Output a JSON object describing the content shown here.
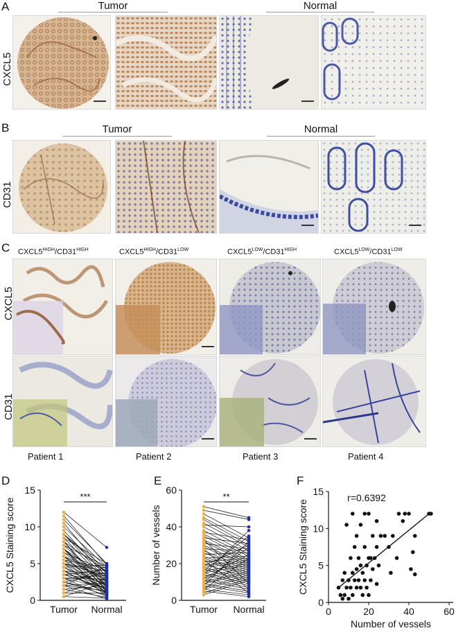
{
  "panels": {
    "A": {
      "letter": "A",
      "tumor_label": "Tumor",
      "normal_label": "Normal",
      "row_label": "CXCL5"
    },
    "B": {
      "letter": "B",
      "tumor_label": "Tumor",
      "normal_label": "Normal",
      "row_label": "CD31"
    },
    "C": {
      "letter": "C",
      "columns": [
        {
          "a": "CXCL5",
          "a_sup": "HIGH",
          "b": "/CD31",
          "b_sup": "HIGH"
        },
        {
          "a": "CXCL5",
          "a_sup": "HIGH",
          "b": "/CD31",
          "b_sup": "LOW"
        },
        {
          "a": "CXCL5",
          "a_sup": "LOW",
          "b": "/CD31",
          "b_sup": "HIGH"
        },
        {
          "a": "CXCL5",
          "a_sup": "LOW",
          "b": "/CD31",
          "b_sup": "LOW"
        }
      ],
      "row_labels": [
        "CXCL5",
        "CD31"
      ],
      "patients": [
        "Patient   1",
        "Patient   2",
        "Patient   3",
        "Patient   4"
      ]
    },
    "D": {
      "letter": "D"
    },
    "E": {
      "letter": "E"
    },
    "F": {
      "letter": "F"
    }
  },
  "colors": {
    "tumor": "#e8b050",
    "normal": "#1f2fa8",
    "line": "#111111"
  },
  "chart_data": [
    {
      "type": "line",
      "panel": "D",
      "ylabel": "CXCL5 Staining score",
      "categories": [
        "Tumor",
        "Normal"
      ],
      "ylim": [
        0,
        15
      ],
      "yticks": [
        0,
        5,
        10,
        15
      ],
      "significance": "***",
      "pairs": [
        [
          12,
          7.2
        ],
        [
          11.5,
          4.8
        ],
        [
          11,
          5
        ],
        [
          10.5,
          3.6
        ],
        [
          10,
          4.5
        ],
        [
          9.5,
          3.2
        ],
        [
          9,
          2.8
        ],
        [
          9,
          4.2
        ],
        [
          8.5,
          2.5
        ],
        [
          8.5,
          5
        ],
        [
          8,
          1.8
        ],
        [
          8,
          3.9
        ],
        [
          7.5,
          2.4
        ],
        [
          7.5,
          4.6
        ],
        [
          7,
          1.5
        ],
        [
          7,
          3.1
        ],
        [
          7,
          0.8
        ],
        [
          6.5,
          2.2
        ],
        [
          6.5,
          4
        ],
        [
          6,
          1.2
        ],
        [
          6,
          3.5
        ],
        [
          6,
          2.6
        ],
        [
          5.5,
          1
        ],
        [
          5.5,
          4.4
        ],
        [
          5.5,
          2.9
        ],
        [
          5,
          0.6
        ],
        [
          5,
          3.3
        ],
        [
          5,
          1.9
        ],
        [
          4.5,
          2.1
        ],
        [
          4.5,
          4.8
        ],
        [
          4.5,
          1.4
        ],
        [
          4,
          0.9
        ],
        [
          4,
          3.6
        ],
        [
          4,
          2.3
        ],
        [
          3.5,
          1.6
        ],
        [
          3.5,
          4.2
        ],
        [
          3.5,
          2.7
        ],
        [
          3,
          0.5
        ],
        [
          3,
          2.9
        ],
        [
          3,
          1.7
        ],
        [
          2.5,
          1.1
        ],
        [
          2.5,
          3.8
        ],
        [
          2.5,
          0.7
        ],
        [
          2,
          2.4
        ],
        [
          2,
          1.3
        ],
        [
          2,
          4.6
        ],
        [
          1.5,
          0.4
        ],
        [
          1.5,
          2
        ],
        [
          1,
          1
        ],
        [
          1,
          3
        ],
        [
          0.5,
          0.3
        ],
        [
          0.5,
          2.5
        ],
        [
          9,
          3.7
        ],
        [
          7,
          2
        ],
        [
          6,
          0.9
        ],
        [
          5,
          4
        ],
        [
          4,
          1.1
        ],
        [
          3,
          3.4
        ],
        [
          2,
          0.2
        ],
        [
          8,
          1.2
        ]
      ]
    },
    {
      "type": "line",
      "panel": "E",
      "ylabel": "Number of vessels",
      "categories": [
        "Tumor",
        "Normal"
      ],
      "ylim": [
        0,
        60
      ],
      "yticks": [
        0,
        20,
        40,
        60
      ],
      "significance": "**",
      "pairs": [
        [
          51,
          45
        ],
        [
          49,
          44
        ],
        [
          47,
          34
        ],
        [
          45,
          32
        ],
        [
          44,
          30
        ],
        [
          42,
          29
        ],
        [
          41,
          40
        ],
        [
          40,
          27
        ],
        [
          38,
          25
        ],
        [
          37,
          33
        ],
        [
          36,
          24
        ],
        [
          35,
          22
        ],
        [
          34,
          31
        ],
        [
          33,
          21
        ],
        [
          32,
          20
        ],
        [
          31,
          28
        ],
        [
          30,
          19
        ],
        [
          29,
          18
        ],
        [
          28,
          27
        ],
        [
          27,
          17
        ],
        [
          26,
          16
        ],
        [
          25,
          26
        ],
        [
          24,
          15
        ],
        [
          23,
          14
        ],
        [
          23,
          24
        ],
        [
          22,
          13
        ],
        [
          21,
          23
        ],
        [
          20,
          12
        ],
        [
          19,
          22
        ],
        [
          18,
          11
        ],
        [
          18,
          21
        ],
        [
          17,
          10
        ],
        [
          16,
          20
        ],
        [
          15,
          9
        ],
        [
          15,
          19
        ],
        [
          14,
          8
        ],
        [
          13,
          18
        ],
        [
          12,
          7
        ],
        [
          12,
          17
        ],
        [
          11,
          6
        ],
        [
          10,
          16
        ],
        [
          9,
          5
        ],
        [
          9,
          15
        ],
        [
          8,
          4
        ],
        [
          7,
          14
        ],
        [
          6,
          3
        ],
        [
          6,
          13
        ],
        [
          5,
          2
        ],
        [
          4,
          12
        ],
        [
          3,
          11
        ],
        [
          33,
          9
        ],
        [
          28,
          6
        ],
        [
          22,
          4
        ],
        [
          19,
          30
        ],
        [
          16,
          35
        ],
        [
          14,
          38
        ],
        [
          12,
          25
        ],
        [
          10,
          29
        ],
        [
          8,
          32
        ],
        [
          6,
          23
        ]
      ]
    },
    {
      "type": "scatter",
      "panel": "F",
      "xlabel": "Number of vessels",
      "ylabel": "CXCL5 Staining score",
      "annotation": "r=0.6392",
      "xlim": [
        0,
        60
      ],
      "ylim": [
        0,
        15
      ],
      "xticks": [
        0,
        20,
        40,
        60
      ],
      "yticks": [
        0,
        5,
        10,
        15
      ],
      "regression": {
        "x": [
          5,
          51
        ],
        "y": [
          2.0,
          12.2
        ]
      },
      "points": [
        [
          12,
          12
        ],
        [
          18,
          12
        ],
        [
          20,
          12
        ],
        [
          35,
          12
        ],
        [
          38,
          12
        ],
        [
          40,
          12
        ],
        [
          50,
          12
        ],
        [
          51,
          12
        ],
        [
          24,
          11
        ],
        [
          37,
          11
        ],
        [
          9,
          10.5
        ],
        [
          16,
          10.5
        ],
        [
          14,
          9
        ],
        [
          22,
          9
        ],
        [
          26,
          9
        ],
        [
          28,
          9
        ],
        [
          32,
          9
        ],
        [
          43,
          9
        ],
        [
          13,
          7.5
        ],
        [
          18,
          7.5
        ],
        [
          24,
          7.5
        ],
        [
          30,
          7.5
        ],
        [
          42,
          6.8
        ],
        [
          11,
          6
        ],
        [
          15,
          6
        ],
        [
          20,
          6
        ],
        [
          21,
          6
        ],
        [
          23,
          6
        ],
        [
          34,
          6
        ],
        [
          16,
          5
        ],
        [
          19,
          5
        ],
        [
          25,
          5
        ],
        [
          14,
          4.5
        ],
        [
          22,
          4.5
        ],
        [
          41,
          4.5
        ],
        [
          43,
          3.8
        ],
        [
          8,
          4
        ],
        [
          12,
          4
        ],
        [
          17,
          4
        ],
        [
          31,
          4
        ],
        [
          7,
          3
        ],
        [
          10,
          3
        ],
        [
          13,
          3
        ],
        [
          15,
          3
        ],
        [
          18,
          3
        ],
        [
          21,
          3
        ],
        [
          5,
          2
        ],
        [
          9,
          2
        ],
        [
          11,
          2
        ],
        [
          14,
          2
        ],
        [
          16,
          2
        ],
        [
          19,
          2
        ],
        [
          6,
          1
        ],
        [
          8,
          1
        ],
        [
          12,
          1
        ],
        [
          17,
          1
        ],
        [
          20,
          1
        ],
        [
          7,
          0.5
        ],
        [
          10,
          0.5
        ],
        [
          24,
          2.5
        ]
      ]
    }
  ]
}
